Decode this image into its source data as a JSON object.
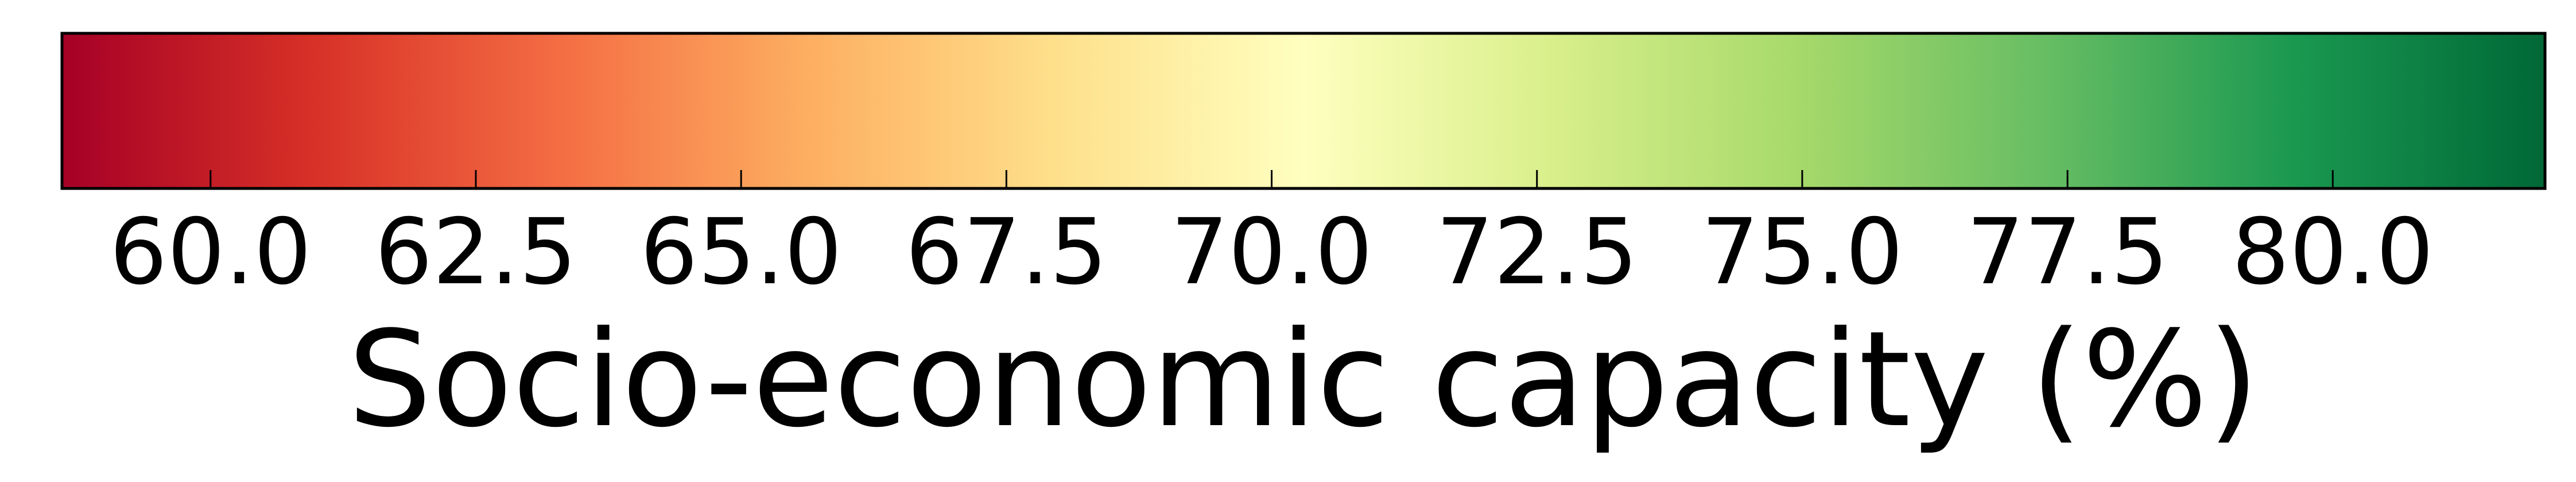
{
  "chart_data": {
    "type": "colorbar",
    "orientation": "horizontal",
    "colormap": "RdYlGn",
    "label": "Socio-economic capacity (%)",
    "range": [
      58.6,
      82.0
    ],
    "ticks": [
      60.0,
      62.5,
      65.0,
      67.5,
      70.0,
      72.5,
      75.0,
      77.5,
      80.0
    ],
    "tick_labels": [
      "60.0",
      "62.5",
      "65.0",
      "67.5",
      "70.0",
      "72.5",
      "75.0",
      "77.5",
      "80.0"
    ],
    "colors": [
      "#a50026",
      "#d73027",
      "#f46d43",
      "#fdae61",
      "#fee08b",
      "#ffffbf",
      "#d9ef8b",
      "#a6d96a",
      "#66bd63",
      "#1a9850",
      "#006837"
    ]
  }
}
